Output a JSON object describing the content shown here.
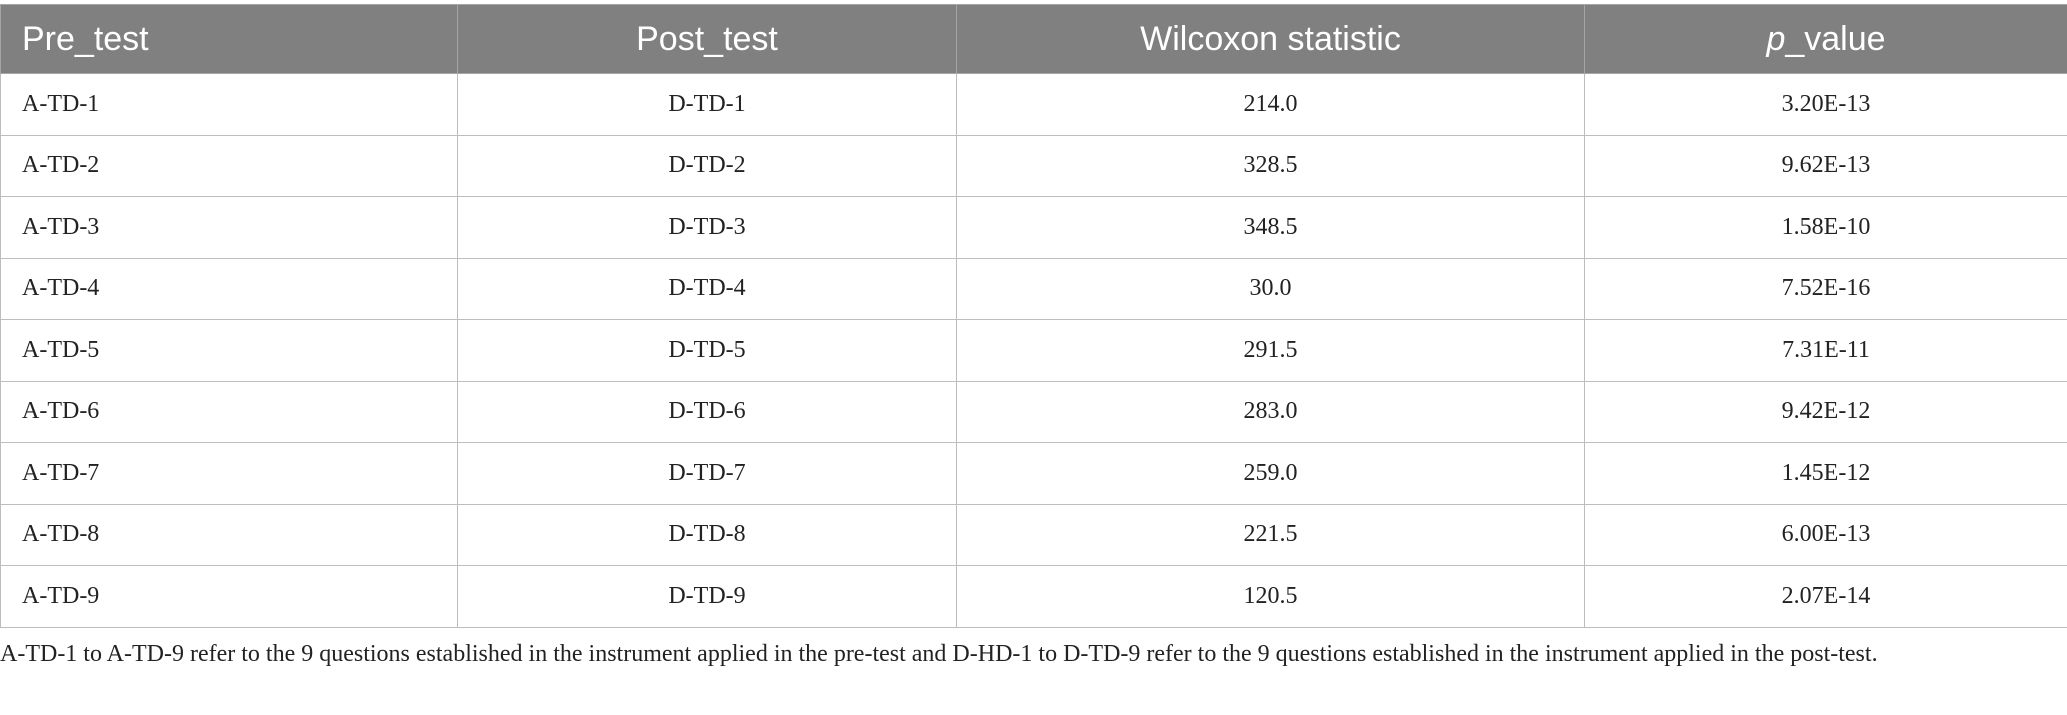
{
  "table": {
    "headers": [
      {
        "parts": [
          "Pre_test"
        ]
      },
      {
        "parts": [
          "Post_test"
        ]
      },
      {
        "parts": [
          "Wilcoxon statistic"
        ]
      },
      {
        "parts": [
          "p",
          "_value"
        ],
        "italic": [
          0
        ]
      }
    ],
    "rows": [
      [
        "A-TD-1",
        "D-TD-1",
        "214.0",
        "3.20E-13"
      ],
      [
        "A-TD-2",
        "D-TD-2",
        "328.5",
        "9.62E-13"
      ],
      [
        "A-TD-3",
        "D-TD-3",
        "348.5",
        "1.58E-10"
      ],
      [
        "A-TD-4",
        "D-TD-4",
        "30.0",
        "7.52E-16"
      ],
      [
        "A-TD-5",
        "D-TD-5",
        "291.5",
        "7.31E-11"
      ],
      [
        "A-TD-6",
        "D-TD-6",
        "283.0",
        "9.42E-12"
      ],
      [
        "A-TD-7",
        "D-TD-7",
        "259.0",
        "1.45E-12"
      ],
      [
        "A-TD-8",
        "D-TD-8",
        "221.5",
        "6.00E-13"
      ],
      [
        "A-TD-9",
        "D-TD-9",
        "120.5",
        "2.07E-14"
      ]
    ]
  },
  "footnote": "A-TD-1 to A-TD-9 refer to the 9 questions established in the instrument applied in the pre-test and D-HD-1 to D-TD-9 refer to the 9 questions established in the instrument applied in the post-test."
}
